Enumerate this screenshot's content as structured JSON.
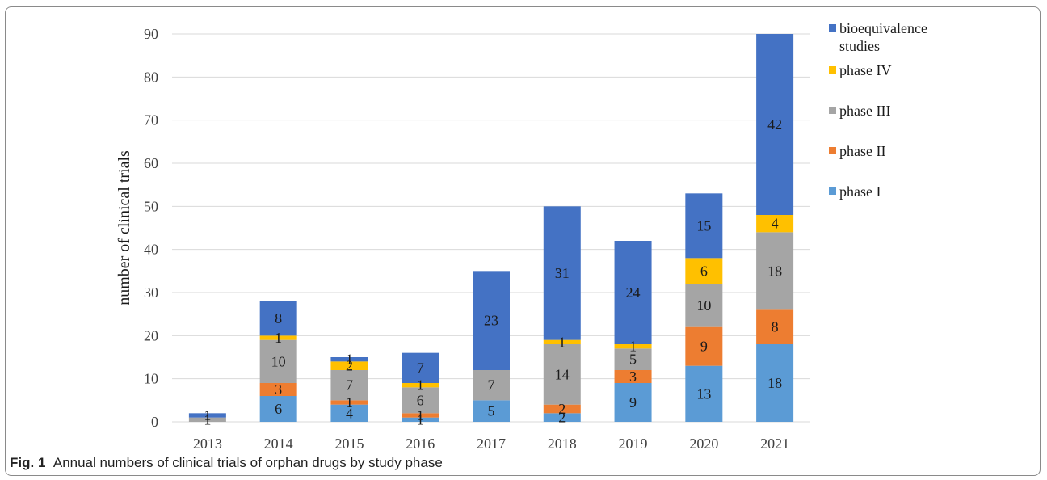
{
  "chart_data": {
    "type": "bar",
    "stacked": true,
    "ylabel": "number of clinical trials",
    "ylim": [
      0,
      90
    ],
    "yticks": [
      0,
      10,
      20,
      30,
      40,
      50,
      60,
      70,
      80,
      90
    ],
    "grid": true,
    "legend_position": "right",
    "categories": [
      "2013",
      "2014",
      "2015",
      "2016",
      "2017",
      "2018",
      "2019",
      "2020",
      "2021"
    ],
    "series": [
      {
        "name": "phase I",
        "color": "#5B9BD5",
        "values": [
          0,
          6,
          4,
          1,
          5,
          2,
          9,
          13,
          18
        ]
      },
      {
        "name": "phase II",
        "color": "#ED7D31",
        "values": [
          0,
          3,
          1,
          1,
          0,
          2,
          3,
          9,
          8
        ]
      },
      {
        "name": "phase III",
        "color": "#A5A5A5",
        "values": [
          1,
          10,
          7,
          6,
          7,
          14,
          5,
          10,
          18
        ]
      },
      {
        "name": "phase IV",
        "color": "#FFC000",
        "values": [
          0,
          1,
          2,
          1,
          0,
          1,
          1,
          6,
          4
        ]
      },
      {
        "name": "bioequivalence studies",
        "color": "#4472C4",
        "values": [
          1,
          8,
          1,
          7,
          23,
          31,
          24,
          15,
          42
        ]
      }
    ],
    "legend_order": [
      4,
      3,
      2,
      1,
      0
    ]
  },
  "caption": {
    "label": "Fig. 1",
    "text": "Annual numbers of clinical trials of orphan drugs by study phase"
  }
}
